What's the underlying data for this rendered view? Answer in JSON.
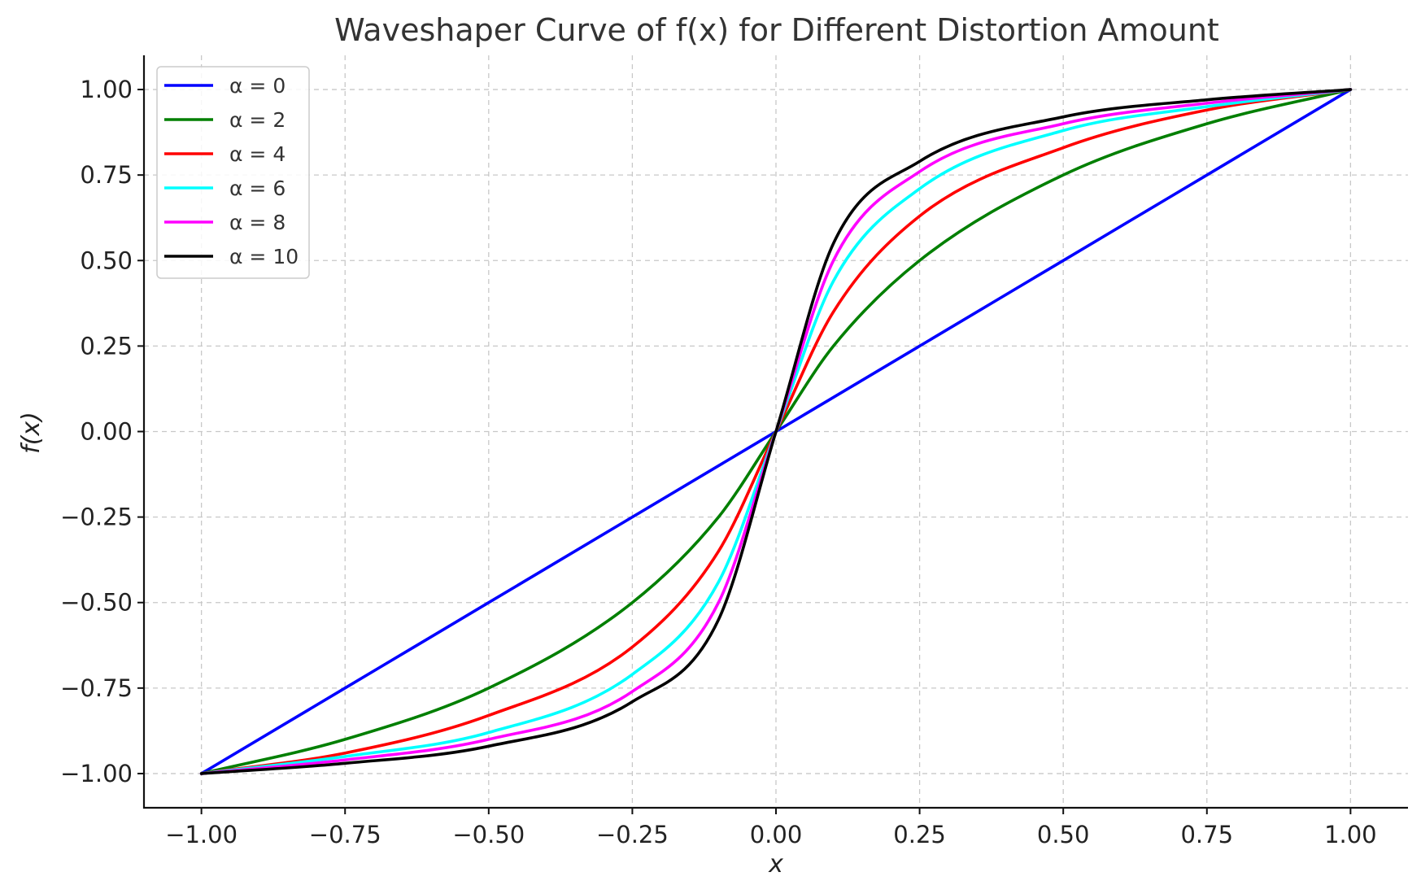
{
  "chart_data": {
    "type": "line",
    "title": "Waveshaper Curve of f(x) for Different Distortion Amount",
    "xlabel": "x",
    "ylabel": "f(x)",
    "xlim": [
      -1.1,
      1.1
    ],
    "ylim": [
      -1.1,
      1.1
    ],
    "x_ticks": [
      -1.0,
      -0.75,
      -0.5,
      -0.25,
      0.0,
      0.25,
      0.5,
      0.75,
      1.0
    ],
    "y_ticks": [
      -1.0,
      -0.75,
      -0.5,
      -0.25,
      0.0,
      0.25,
      0.5,
      0.75,
      1.0
    ],
    "x_tick_labels": [
      "−1.00",
      "−0.75",
      "−0.50",
      "−0.25",
      "0.00",
      "0.25",
      "0.50",
      "0.75",
      "1.00"
    ],
    "y_tick_labels": [
      "−1.00",
      "−0.75",
      "−0.50",
      "−0.25",
      "0.00",
      "0.25",
      "0.50",
      "0.75",
      "1.00"
    ],
    "grid": true,
    "legend_position": "top-left",
    "x": [
      -1.0,
      -0.75,
      -0.5,
      -0.25,
      -0.1,
      0.0,
      0.1,
      0.25,
      0.5,
      0.75,
      1.0
    ],
    "series": [
      {
        "name": "α = 0",
        "alpha": 0,
        "color": "#0000ff",
        "values": [
          -1.0,
          -0.75,
          -0.5,
          -0.25,
          -0.1,
          0.0,
          0.1,
          0.25,
          0.5,
          0.75,
          1.0
        ]
      },
      {
        "name": "α = 2",
        "alpha": 2,
        "color": "#007f00",
        "values": [
          -1.0,
          -0.9,
          -0.75,
          -0.5,
          -0.25,
          0.0,
          0.25,
          0.5,
          0.75,
          0.9,
          1.0
        ]
      },
      {
        "name": "α = 4",
        "alpha": 4,
        "color": "#ff0000",
        "values": [
          -1.0,
          -0.94,
          -0.83,
          -0.63,
          -0.35,
          0.0,
          0.35,
          0.63,
          0.83,
          0.94,
          1.0
        ]
      },
      {
        "name": "α = 6",
        "alpha": 6,
        "color": "#00ffff",
        "values": [
          -1.0,
          -0.95,
          -0.88,
          -0.71,
          -0.44,
          0.0,
          0.44,
          0.71,
          0.88,
          0.95,
          1.0
        ]
      },
      {
        "name": "α = 8",
        "alpha": 8,
        "color": "#ff00ff",
        "values": [
          -1.0,
          -0.96,
          -0.9,
          -0.76,
          -0.5,
          0.0,
          0.5,
          0.76,
          0.9,
          0.96,
          1.0
        ]
      },
      {
        "name": "α = 10",
        "alpha": 10,
        "color": "#000000",
        "values": [
          -1.0,
          -0.97,
          -0.92,
          -0.79,
          -0.55,
          0.0,
          0.55,
          0.79,
          0.92,
          0.97,
          1.0
        ]
      }
    ]
  }
}
